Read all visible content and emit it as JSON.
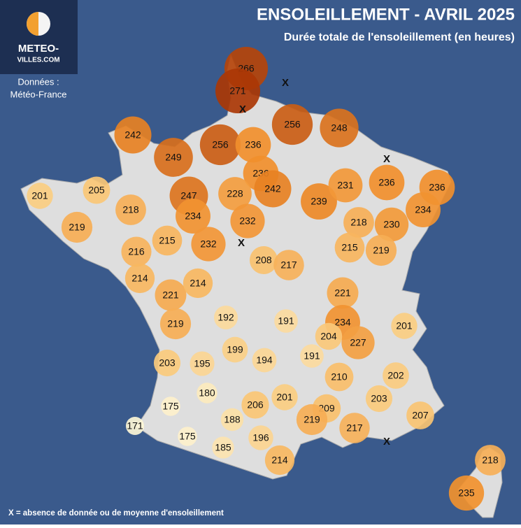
{
  "header": {
    "title": "ENSOLEILLEMENT - AVRIL 2025",
    "subtitle": "Durée totale de l'ensoleillement (en heures)"
  },
  "logo": {
    "line1": "METEO-",
    "line2": "VILLES.COM"
  },
  "source": {
    "line1": "Données :",
    "line2": "Météo-France"
  },
  "legend_note": "X = absence de donnée ou de moyenne d'ensoleillement",
  "missing_marker": "X",
  "stations": {
    "values": [
      266,
      271,
      256,
      248,
      242,
      249,
      256,
      236,
      236,
      242,
      228,
      247,
      234,
      232,
      232,
      201,
      205,
      218,
      219,
      215,
      216,
      214,
      221,
      214,
      219,
      208,
      217,
      239,
      231,
      236,
      236,
      234,
      218,
      230,
      215,
      219,
      221,
      234,
      227,
      204,
      201,
      192,
      191,
      199,
      191,
      194,
      203,
      195,
      210,
      202,
      203,
      180,
      175,
      206,
      201,
      209,
      219,
      188,
      207,
      171,
      175,
      196,
      217,
      185,
      214,
      218,
      235
    ]
  }
}
